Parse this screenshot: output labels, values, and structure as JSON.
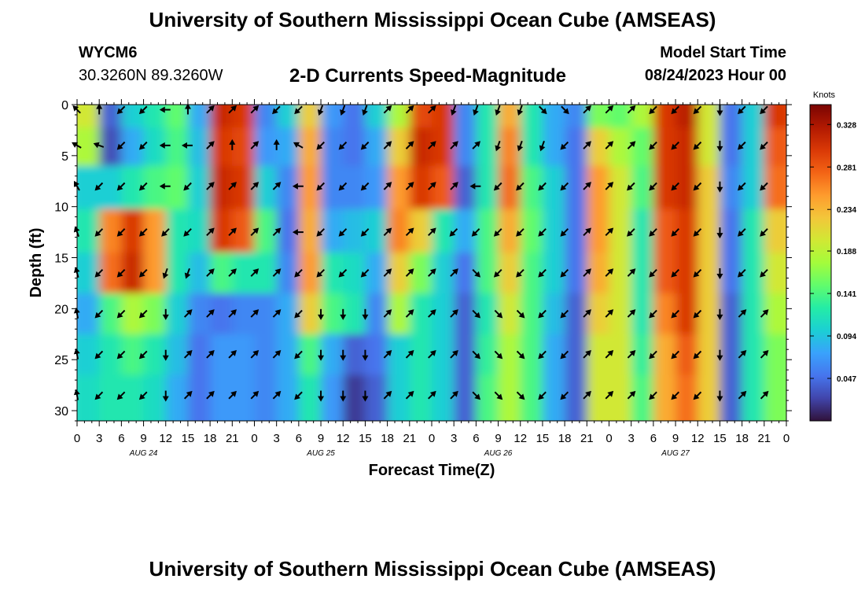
{
  "header": {
    "title": "University of Southern Mississippi Ocean Cube (AMSEAS)",
    "station_id": "WYCM6",
    "station_coords": "30.3260N  89.3260W",
    "subtitle": "2-D Currents Speed-Magnitude",
    "model_start_label": "Model Start Time",
    "model_start_value": "08/24/2023 Hour 00"
  },
  "footer": {
    "title": "University of Southern Mississippi Ocean Cube (AMSEAS)"
  },
  "colors": {
    "palette": [
      "#30123b",
      "#4145ab",
      "#4675ed",
      "#39a2fc",
      "#1bcfd4",
      "#24eca6",
      "#61fc6c",
      "#a4fc3b",
      "#d1e834",
      "#f3c63a",
      "#fe9b2d",
      "#f36315",
      "#d93806",
      "#b11901",
      "#7a0403"
    ]
  },
  "chart_data": {
    "type": "heatmap",
    "title": "2-D Currents Speed-Magnitude",
    "xlabel": "Forecast Time(Z)",
    "ylabel": "Depth (ft)",
    "x_ticks": [
      "0",
      "3",
      "6",
      "9",
      "12",
      "15",
      "18",
      "21",
      "0",
      "3",
      "6",
      "9",
      "12",
      "15",
      "18",
      "21",
      "0",
      "3",
      "6",
      "9",
      "12",
      "15",
      "18",
      "21",
      "0",
      "3",
      "6",
      "9",
      "12",
      "15",
      "18",
      "21",
      "0"
    ],
    "x_range_hours": [
      0,
      96
    ],
    "date_labels": [
      {
        "label": "AUG 24",
        "hour": 9
      },
      {
        "label": "AUG 25",
        "hour": 33
      },
      {
        "label": "AUG 26",
        "hour": 57
      },
      {
        "label": "AUG 27",
        "hour": 81
      }
    ],
    "y_ticks": [
      0,
      5,
      10,
      15,
      20,
      25,
      30
    ],
    "y_range_ft": [
      0,
      31
    ],
    "colorbar": {
      "unit": "Knots",
      "ticks": [
        "0.328",
        "0.281",
        "0.234",
        "0.188",
        "0.141",
        "0.094",
        "0.047"
      ],
      "range": [
        0.0,
        0.35
      ]
    },
    "vector_depths_ft": [
      0.5,
      4,
      8,
      12.5,
      16.5,
      20.5,
      24.5,
      28.5
    ],
    "vector_times_hours": [
      0,
      3,
      6,
      9,
      12,
      15,
      18,
      21,
      24,
      27,
      30,
      33,
      36,
      39,
      42,
      45,
      48,
      51,
      54,
      57,
      60,
      63,
      66,
      69,
      72,
      75,
      78,
      81,
      84,
      87,
      90,
      93
    ],
    "speed_grid_knots": [
      [
        0.2,
        0.04,
        0.1,
        0.12,
        0.15,
        0.08,
        0.31,
        0.3,
        0.06,
        0.1,
        0.22,
        0.07,
        0.05,
        0.1,
        0.18,
        0.29,
        0.3,
        0.06,
        0.12,
        0.24,
        0.12,
        0.08,
        0.06,
        0.16,
        0.15,
        0.18,
        0.3,
        0.32,
        0.2,
        0.05,
        0.1,
        0.3
      ],
      [
        0.18,
        0.03,
        0.08,
        0.11,
        0.14,
        0.09,
        0.3,
        0.29,
        0.07,
        0.08,
        0.24,
        0.06,
        0.05,
        0.08,
        0.22,
        0.31,
        0.3,
        0.06,
        0.12,
        0.26,
        0.12,
        0.08,
        0.05,
        0.22,
        0.18,
        0.15,
        0.3,
        0.31,
        0.2,
        0.05,
        0.1,
        0.28
      ],
      [
        0.1,
        0.1,
        0.12,
        0.14,
        0.15,
        0.1,
        0.31,
        0.3,
        0.1,
        0.06,
        0.25,
        0.06,
        0.06,
        0.07,
        0.25,
        0.3,
        0.28,
        0.04,
        0.12,
        0.27,
        0.14,
        0.1,
        0.05,
        0.25,
        0.2,
        0.14,
        0.3,
        0.31,
        0.22,
        0.06,
        0.1,
        0.27
      ],
      [
        0.12,
        0.26,
        0.3,
        0.25,
        0.12,
        0.11,
        0.3,
        0.28,
        0.14,
        0.05,
        0.24,
        0.08,
        0.09,
        0.1,
        0.26,
        0.22,
        0.12,
        0.08,
        0.14,
        0.24,
        0.15,
        0.1,
        0.05,
        0.25,
        0.2,
        0.12,
        0.28,
        0.3,
        0.22,
        0.05,
        0.12,
        0.22
      ],
      [
        0.1,
        0.27,
        0.31,
        0.25,
        0.12,
        0.09,
        0.14,
        0.12,
        0.12,
        0.06,
        0.25,
        0.12,
        0.11,
        0.08,
        0.22,
        0.16,
        0.1,
        0.05,
        0.14,
        0.22,
        0.14,
        0.1,
        0.05,
        0.24,
        0.2,
        0.12,
        0.28,
        0.3,
        0.22,
        0.05,
        0.12,
        0.2
      ],
      [
        0.08,
        0.14,
        0.18,
        0.16,
        0.1,
        0.06,
        0.05,
        0.06,
        0.06,
        0.08,
        0.22,
        0.14,
        0.12,
        0.06,
        0.18,
        0.12,
        0.1,
        0.04,
        0.12,
        0.2,
        0.14,
        0.09,
        0.04,
        0.22,
        0.2,
        0.12,
        0.26,
        0.3,
        0.22,
        0.04,
        0.12,
        0.18
      ],
      [
        0.1,
        0.12,
        0.14,
        0.12,
        0.09,
        0.05,
        0.07,
        0.07,
        0.06,
        0.08,
        0.14,
        0.08,
        0.04,
        0.05,
        0.1,
        0.12,
        0.1,
        0.04,
        0.13,
        0.18,
        0.14,
        0.08,
        0.04,
        0.2,
        0.2,
        0.13,
        0.24,
        0.28,
        0.22,
        0.04,
        0.12,
        0.16
      ],
      [
        0.11,
        0.12,
        0.12,
        0.11,
        0.08,
        0.05,
        0.07,
        0.07,
        0.06,
        0.08,
        0.12,
        0.07,
        0.02,
        0.04,
        0.1,
        0.12,
        0.1,
        0.04,
        0.14,
        0.18,
        0.14,
        0.08,
        0.04,
        0.2,
        0.2,
        0.14,
        0.24,
        0.27,
        0.22,
        0.04,
        0.12,
        0.16
      ]
    ],
    "direction_grid_deg": [
      [
        315,
        0,
        225,
        225,
        270,
        0,
        45,
        45,
        45,
        225,
        225,
        200,
        200,
        200,
        45,
        45,
        45,
        200,
        200,
        200,
        200,
        135,
        135,
        45,
        45,
        45,
        225,
        225,
        225,
        180,
        225,
        225
      ],
      [
        300,
        290,
        225,
        225,
        270,
        270,
        45,
        0,
        45,
        0,
        300,
        225,
        225,
        225,
        45,
        45,
        45,
        45,
        45,
        200,
        200,
        200,
        225,
        45,
        45,
        45,
        225,
        225,
        225,
        180,
        225,
        225
      ],
      [
        330,
        225,
        225,
        225,
        270,
        225,
        45,
        45,
        45,
        45,
        270,
        225,
        225,
        225,
        45,
        45,
        45,
        45,
        270,
        225,
        225,
        225,
        225,
        45,
        45,
        225,
        225,
        225,
        225,
        180,
        225,
        225
      ],
      [
        340,
        225,
        225,
        225,
        225,
        225,
        45,
        45,
        45,
        45,
        270,
        225,
        225,
        225,
        45,
        45,
        45,
        225,
        225,
        225,
        225,
        225,
        225,
        45,
        45,
        225,
        225,
        225,
        225,
        180,
        225,
        225
      ],
      [
        345,
        225,
        225,
        225,
        200,
        200,
        45,
        45,
        45,
        45,
        225,
        225,
        225,
        225,
        45,
        45,
        45,
        45,
        135,
        225,
        225,
        225,
        225,
        45,
        45,
        45,
        225,
        225,
        225,
        180,
        225,
        225
      ],
      [
        350,
        225,
        225,
        225,
        180,
        45,
        45,
        45,
        45,
        45,
        225,
        180,
        180,
        180,
        45,
        45,
        45,
        45,
        135,
        135,
        135,
        225,
        225,
        45,
        45,
        45,
        225,
        225,
        225,
        180,
        45,
        45
      ],
      [
        350,
        225,
        225,
        225,
        180,
        45,
        45,
        45,
        45,
        45,
        225,
        180,
        180,
        180,
        45,
        45,
        45,
        45,
        135,
        135,
        135,
        225,
        225,
        45,
        45,
        45,
        225,
        225,
        225,
        180,
        45,
        45
      ],
      [
        350,
        225,
        225,
        225,
        180,
        45,
        45,
        45,
        45,
        45,
        225,
        180,
        180,
        180,
        45,
        45,
        45,
        45,
        135,
        135,
        135,
        225,
        225,
        45,
        45,
        45,
        225,
        225,
        225,
        180,
        45,
        45
      ]
    ]
  }
}
